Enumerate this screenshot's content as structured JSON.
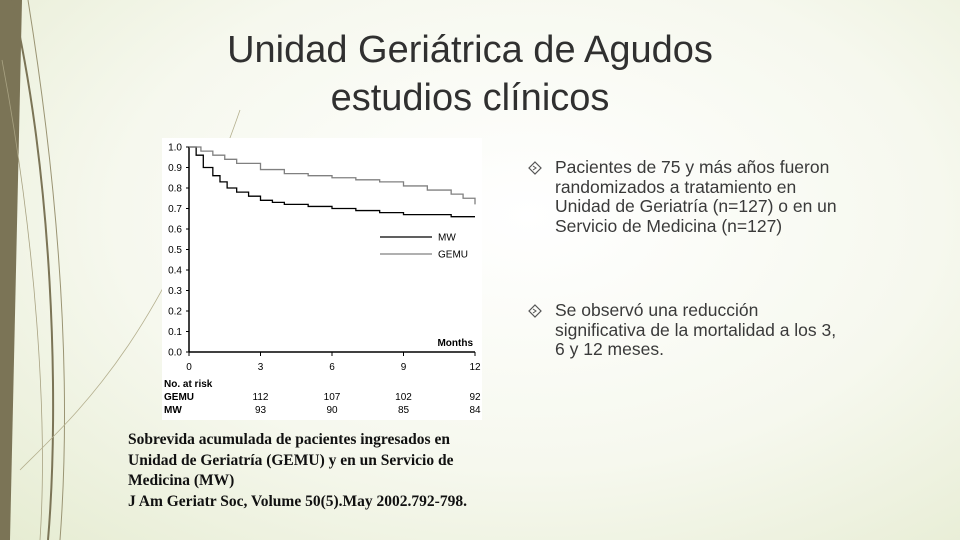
{
  "slide": {
    "title_line1": "Unidad Geriátrica de Agudos",
    "title_line2": "estudios clínicos",
    "colors": {
      "accent": "#7b7456",
      "text": "#404040",
      "background": "#f6f8ee"
    }
  },
  "bullets": [
    {
      "icon": "diamond-outline-icon",
      "text": "Pacientes de 75 y más años fueron randomizados a tratamiento en Unidad de Geriatría (n=127) o en un Servicio de Medicina (n=127)"
    },
    {
      "icon": "diamond-outline-icon",
      "text": "Se observó una reducción significativa de la mortalidad a los 3, 6 y 12 meses."
    }
  ],
  "caption": {
    "line1": "Sobrevida acumulada de pacientes ingresados en",
    "line2": "Unidad de Geriatría (GEMU) y en un Servicio de",
    "line3": "Medicina (MW)",
    "line4": "J Am Geriatr Soc, Volume 50(5).May 2002.792-798."
  },
  "chart_data": {
    "type": "line",
    "title": "",
    "xlabel": "Months",
    "ylabel": "",
    "xlim": [
      0,
      12
    ],
    "ylim": [
      0,
      1.0
    ],
    "x_ticks": [
      0,
      3,
      6,
      9,
      12
    ],
    "y_ticks": [
      "0.0",
      "0.1",
      "0.2",
      "0.3",
      "0.4",
      "0.5",
      "0.6",
      "0.7",
      "0.8",
      "0.9",
      "1.0"
    ],
    "legend_position": "right-middle",
    "grid": false,
    "series": [
      {
        "name": "MW",
        "color": "#000000",
        "step": true,
        "x": [
          0,
          0.3,
          0.6,
          1.0,
          1.3,
          1.6,
          2.0,
          2.5,
          3.0,
          3.5,
          4.0,
          5.0,
          6.0,
          7.0,
          8.0,
          9.0,
          10.0,
          11.0,
          12.0
        ],
        "y": [
          1.0,
          0.96,
          0.9,
          0.86,
          0.83,
          0.8,
          0.78,
          0.76,
          0.74,
          0.73,
          0.72,
          0.71,
          0.7,
          0.69,
          0.68,
          0.67,
          0.67,
          0.66,
          0.66
        ]
      },
      {
        "name": "GEMU",
        "color": "#808080",
        "step": true,
        "x": [
          0,
          0.5,
          1.0,
          1.5,
          2.0,
          3.0,
          4.0,
          5.0,
          6.0,
          7.0,
          8.0,
          9.0,
          10.0,
          11.0,
          11.5,
          12.0
        ],
        "y": [
          1.0,
          0.98,
          0.96,
          0.94,
          0.92,
          0.89,
          0.87,
          0.86,
          0.85,
          0.84,
          0.83,
          0.81,
          0.79,
          0.77,
          0.75,
          0.72
        ]
      }
    ],
    "risk_table": {
      "title": "No. at risk",
      "rows": [
        {
          "label": "GEMU",
          "values": [
            112,
            107,
            102,
            92
          ]
        },
        {
          "label": "MW",
          "values": [
            93,
            90,
            85,
            84
          ]
        }
      ]
    }
  }
}
